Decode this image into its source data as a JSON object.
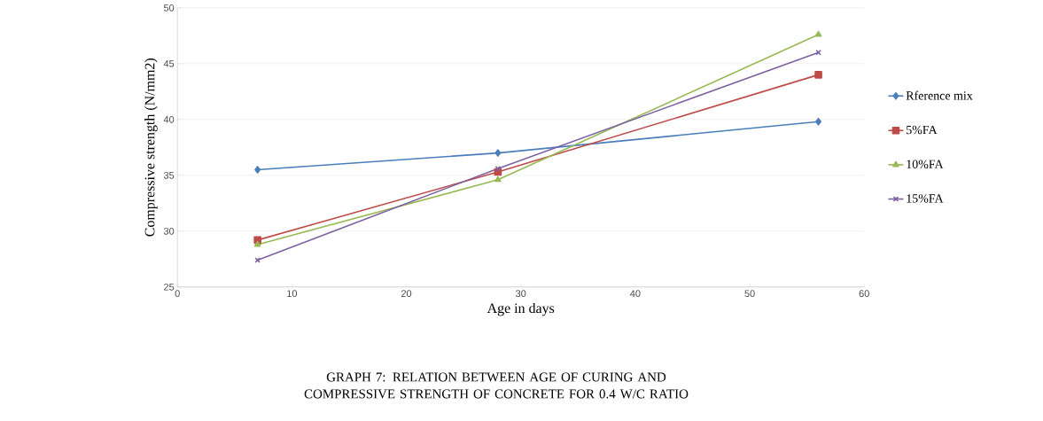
{
  "chart_data": {
    "type": "line",
    "title": "GRAPH 7: RELATION BETWEEN AGE OF  CURING  AND COMPRESSIVE  STRENGTH  OF CONCRETE FOR 0.4 W/C RATIO",
    "xlabel": "Age in days",
    "ylabel": "Compressive strength (N/mm2)",
    "x": [
      7,
      28,
      56
    ],
    "series": [
      {
        "name": "Rference mix",
        "color": "#4a7ebb",
        "marker": "diamond",
        "values": [
          35.5,
          37.0,
          39.8
        ]
      },
      {
        "name": "5%FA",
        "color": "#be4b48",
        "marker": "square",
        "values": [
          29.2,
          35.3,
          44.0
        ]
      },
      {
        "name": "10%FA",
        "color": "#98b954",
        "marker": "triangle",
        "values": [
          28.8,
          34.6,
          47.6
        ]
      },
      {
        "name": "15%FA",
        "color": "#7d60a0",
        "marker": "cross",
        "values": [
          27.4,
          35.6,
          46.0
        ]
      }
    ],
    "xlim": [
      0,
      60
    ],
    "xticks": [
      0,
      10,
      20,
      30,
      40,
      50,
      60
    ],
    "ylim": [
      25,
      50
    ],
    "yticks": [
      25,
      30,
      35,
      40,
      45,
      50
    ],
    "grid": "y",
    "legend": "right",
    "line_style": "solid"
  }
}
